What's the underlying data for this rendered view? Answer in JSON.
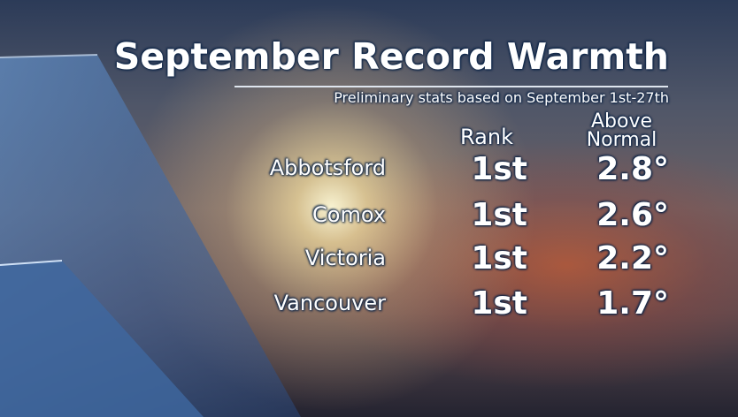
{
  "title": "September Record Warmth",
  "subtitle": "Preliminary stats based on September 1st-27th",
  "headers": {
    "rank": "Rank",
    "above_line1": "Above",
    "above_line2": "Normal"
  },
  "rows": [
    {
      "city": "Abbotsford",
      "rank": "1st",
      "above": "2.8°"
    },
    {
      "city": "Comox",
      "rank": "1st",
      "above": "2.6°"
    },
    {
      "city": "Victoria",
      "rank": "1st",
      "above": "2.2°"
    },
    {
      "city": "Vancouver",
      "rank": "1st",
      "above": "1.7°"
    }
  ]
}
